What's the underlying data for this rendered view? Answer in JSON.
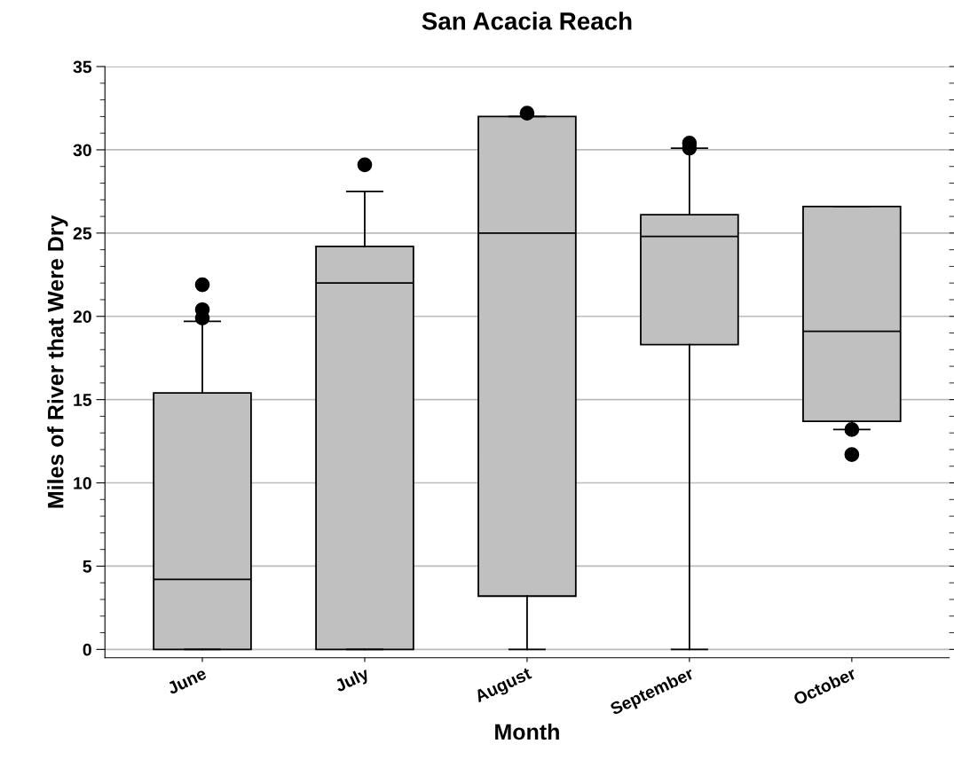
{
  "chart_data": {
    "type": "box",
    "title": "San Acacia Reach",
    "xlabel": "Month",
    "ylabel": "Miles of River that Were Dry",
    "categories": [
      "June",
      "July",
      "August",
      "September",
      "October"
    ],
    "boxes": [
      {
        "low": 0,
        "q1": 0,
        "median": 4.2,
        "q3": 15.4,
        "high": 19.7,
        "outliers": [
          19.9,
          20.4,
          21.9
        ]
      },
      {
        "low": 0,
        "q1": 0,
        "median": 22.0,
        "q3": 24.2,
        "high": 27.5,
        "outliers": [
          29.1
        ]
      },
      {
        "low": 0,
        "q1": 3.2,
        "median": 25.0,
        "q3": 32.0,
        "high": 32.0,
        "outliers": [
          32.2
        ]
      },
      {
        "low": 0,
        "q1": 18.3,
        "median": 24.8,
        "q3": 26.1,
        "high": 30.1,
        "outliers": [
          30.1,
          30.4
        ]
      },
      {
        "low": 13.2,
        "q1": 13.7,
        "median": 19.1,
        "q3": 26.6,
        "high": 26.6,
        "outliers": [
          13.2,
          11.7
        ]
      }
    ],
    "color": "#c0c0c0",
    "ylim": [
      -0.5,
      35
    ],
    "yticks": [
      0,
      5,
      10,
      15,
      20,
      25,
      30,
      35
    ],
    "grid": "y"
  }
}
